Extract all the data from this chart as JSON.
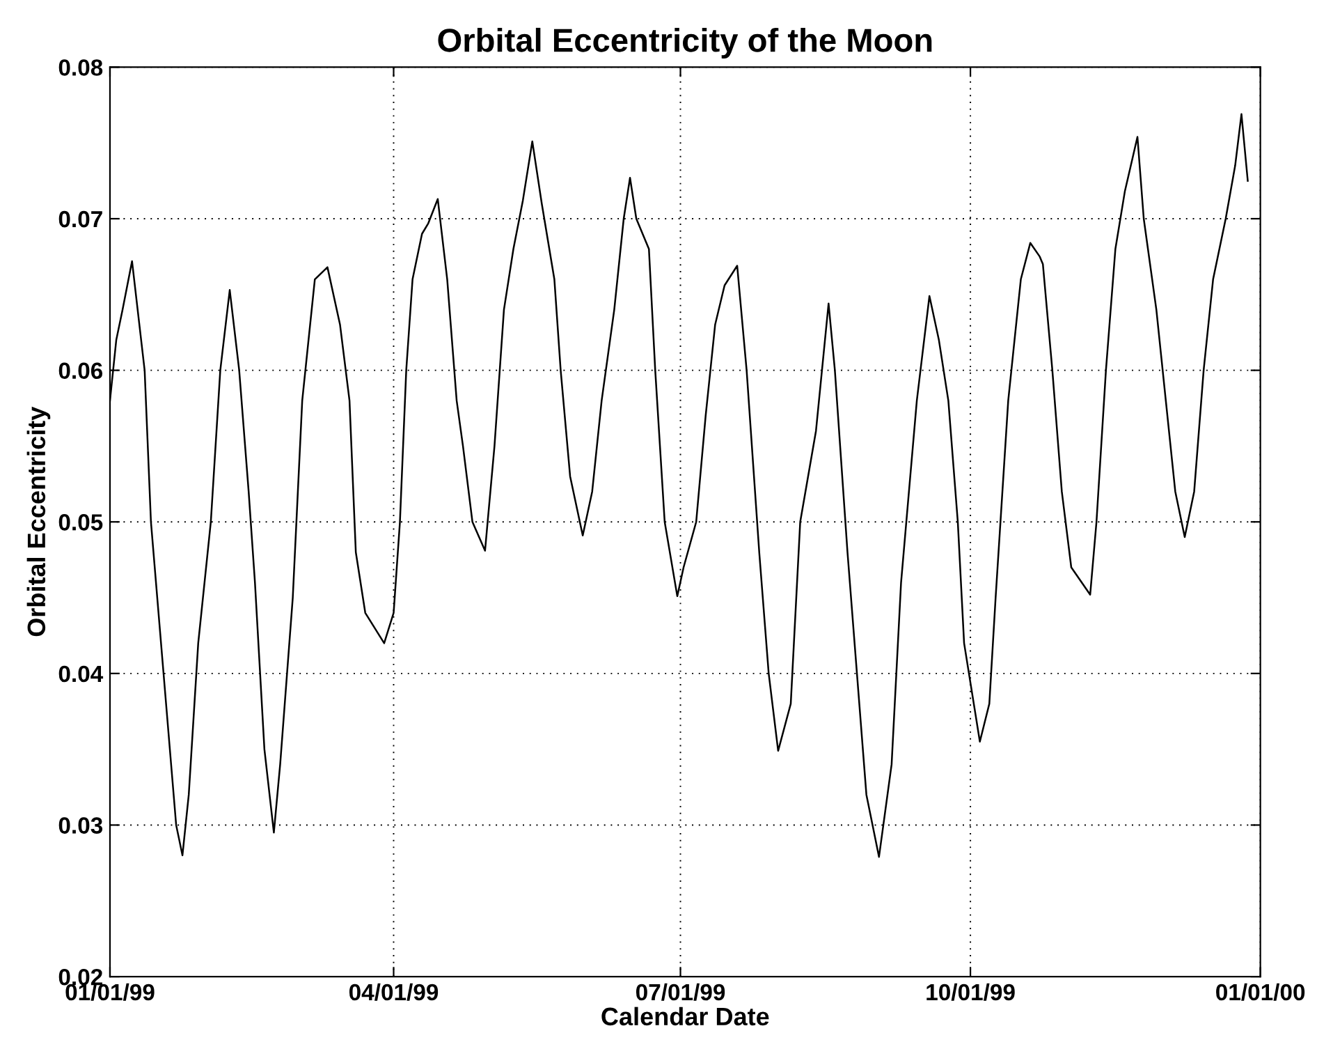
{
  "chart_data": {
    "type": "line",
    "title": "Orbital Eccentricity of the Moon",
    "xlabel": "Calendar Date",
    "ylabel": "Orbital Eccentricity",
    "x": [
      "1999-01-01",
      "1999-01-03",
      "1999-01-05",
      "1999-01-08",
      "1999-01-12",
      "1999-01-14",
      "1999-01-18",
      "1999-01-22",
      "1999-01-24",
      "1999-01-26",
      "1999-01-29",
      "1999-02-02",
      "1999-02-05",
      "1999-02-08",
      "1999-02-11",
      "1999-02-14",
      "1999-02-16",
      "1999-02-19",
      "1999-02-22",
      "1999-02-24",
      "1999-02-28",
      "1999-03-03",
      "1999-03-07",
      "1999-03-11",
      "1999-03-15",
      "1999-03-18",
      "1999-03-20",
      "1999-03-23",
      "1999-03-29",
      "1999-04-01",
      "1999-04-03",
      "1999-04-05",
      "1999-04-07",
      "1999-04-10",
      "1999-04-12",
      "1999-04-15",
      "1999-04-18",
      "1999-04-21",
      "1999-04-23",
      "1999-04-26",
      "1999-04-30",
      "1999-05-03",
      "1999-05-06",
      "1999-05-09",
      "1999-05-12",
      "1999-05-15",
      "1999-05-18",
      "1999-05-22",
      "1999-05-24",
      "1999-05-27",
      "1999-05-31",
      "1999-06-03",
      "1999-06-06",
      "1999-06-10",
      "1999-06-13",
      "1999-06-15",
      "1999-06-17",
      "1999-06-21",
      "1999-06-23",
      "1999-06-26",
      "1999-06-30",
      "1999-07-02",
      "1999-07-06",
      "1999-07-09",
      "1999-07-12",
      "1999-07-15",
      "1999-07-19",
      "1999-07-22",
      "1999-07-26",
      "1999-07-29",
      "1999-08-01",
      "1999-08-05",
      "1999-08-08",
      "1999-08-13",
      "1999-08-17",
      "1999-08-19",
      "1999-08-23",
      "1999-08-26",
      "1999-08-29",
      "1999-09-02",
      "1999-09-06",
      "1999-09-09",
      "1999-09-14",
      "1999-09-18",
      "1999-09-21",
      "1999-09-24",
      "1999-09-27",
      "1999-09-29",
      "1999-10-04",
      "1999-10-07",
      "1999-10-09",
      "1999-10-13",
      "1999-10-17",
      "1999-10-20",
      "1999-10-23",
      "1999-10-24",
      "1999-10-27",
      "1999-10-30",
      "1999-11-02",
      "1999-11-08",
      "1999-11-10",
      "1999-11-13",
      "1999-11-16",
      "1999-11-19",
      "1999-11-23",
      "1999-11-25",
      "1999-11-29",
      "1999-12-02",
      "1999-12-05",
      "1999-12-08",
      "1999-12-11",
      "1999-12-14",
      "1999-12-17",
      "1999-12-21",
      "1999-12-24",
      "1999-12-26",
      "1999-12-28"
    ],
    "series": [
      {
        "color": "#000000",
        "values": [
          0.058,
          0.062,
          0.064,
          0.0672,
          0.06,
          0.05,
          0.04,
          0.03,
          0.028,
          0.032,
          0.042,
          0.05,
          0.06,
          0.0653,
          0.06,
          0.052,
          0.046,
          0.035,
          0.0295,
          0.034,
          0.045,
          0.058,
          0.066,
          0.0668,
          0.063,
          0.058,
          0.048,
          0.044,
          0.042,
          0.044,
          0.05,
          0.06,
          0.066,
          0.069,
          0.0697,
          0.0713,
          0.066,
          0.058,
          0.055,
          0.05,
          0.0481,
          0.055,
          0.064,
          0.068,
          0.0712,
          0.0751,
          0.071,
          0.066,
          0.06,
          0.053,
          0.0491,
          0.052,
          0.058,
          0.064,
          0.07,
          0.0727,
          0.07,
          0.068,
          0.06,
          0.05,
          0.0451,
          0.047,
          0.05,
          0.057,
          0.063,
          0.0656,
          0.0669,
          0.06,
          0.048,
          0.04,
          0.0349,
          0.038,
          0.05,
          0.056,
          0.0644,
          0.06,
          0.048,
          0.04,
          0.032,
          0.0279,
          0.034,
          0.046,
          0.058,
          0.0649,
          0.062,
          0.058,
          0.05,
          0.042,
          0.0355,
          0.038,
          0.045,
          0.058,
          0.066,
          0.0684,
          0.0675,
          0.067,
          0.06,
          0.052,
          0.047,
          0.0452,
          0.05,
          0.06,
          0.068,
          0.0718,
          0.0754,
          0.07,
          0.064,
          0.058,
          0.052,
          0.049,
          0.052,
          0.06,
          0.066,
          0.07,
          0.0735,
          0.0769,
          0.0725
        ]
      }
    ],
    "xlim": [
      "1999-01-01",
      "2000-01-01"
    ],
    "xticks": [
      {
        "value": "1999-01-01",
        "label": "01/01/99"
      },
      {
        "value": "1999-04-01",
        "label": "04/01/99"
      },
      {
        "value": "1999-07-01",
        "label": "07/01/99"
      },
      {
        "value": "1999-10-01",
        "label": "10/01/99"
      },
      {
        "value": "2000-01-01",
        "label": "01/01/00"
      }
    ],
    "ylim": [
      0.02,
      0.08
    ],
    "yticks": [
      {
        "value": 0.02,
        "label": "0.02"
      },
      {
        "value": 0.03,
        "label": "0.03"
      },
      {
        "value": 0.04,
        "label": "0.04"
      },
      {
        "value": 0.05,
        "label": "0.05"
      },
      {
        "value": 0.06,
        "label": "0.06"
      },
      {
        "value": 0.07,
        "label": "0.07"
      },
      {
        "value": 0.08,
        "label": "0.08"
      }
    ],
    "grid": true,
    "line_style": "solid"
  }
}
